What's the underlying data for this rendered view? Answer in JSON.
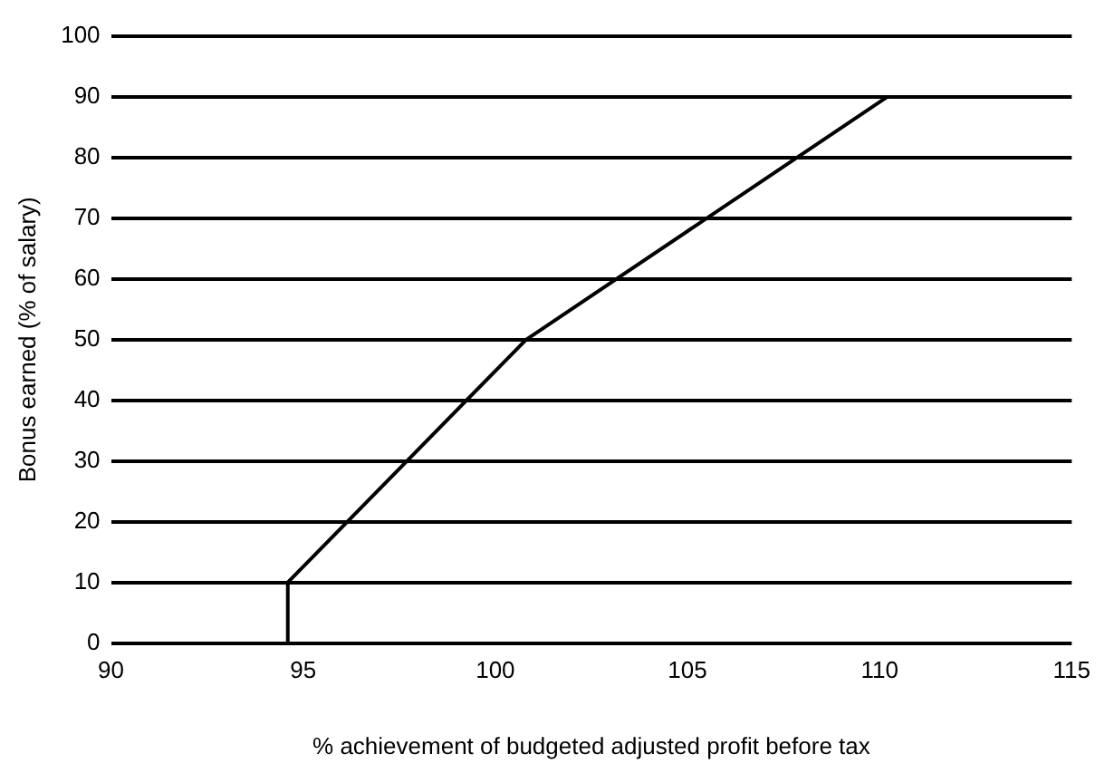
{
  "chart_data": {
    "type": "line",
    "xlabel": "% achievement of budgeted adjusted profit before tax",
    "ylabel": "Bonus earned (% of salary)",
    "series": [
      {
        "color": "#000000",
        "x": [
          94.6,
          94.6,
          100.8,
          110.2
        ],
        "values": [
          0,
          10,
          50,
          90
        ]
      }
    ],
    "xlim": [
      90,
      115
    ],
    "xticks": [
      90,
      95,
      100,
      105,
      110,
      115
    ],
    "ylim": [
      0,
      100
    ],
    "yticks": [
      0,
      10,
      20,
      30,
      40,
      50,
      60,
      70,
      80,
      90,
      100
    ],
    "grid": "y",
    "legend": false,
    "marker": "none",
    "line_style": "solid"
  }
}
